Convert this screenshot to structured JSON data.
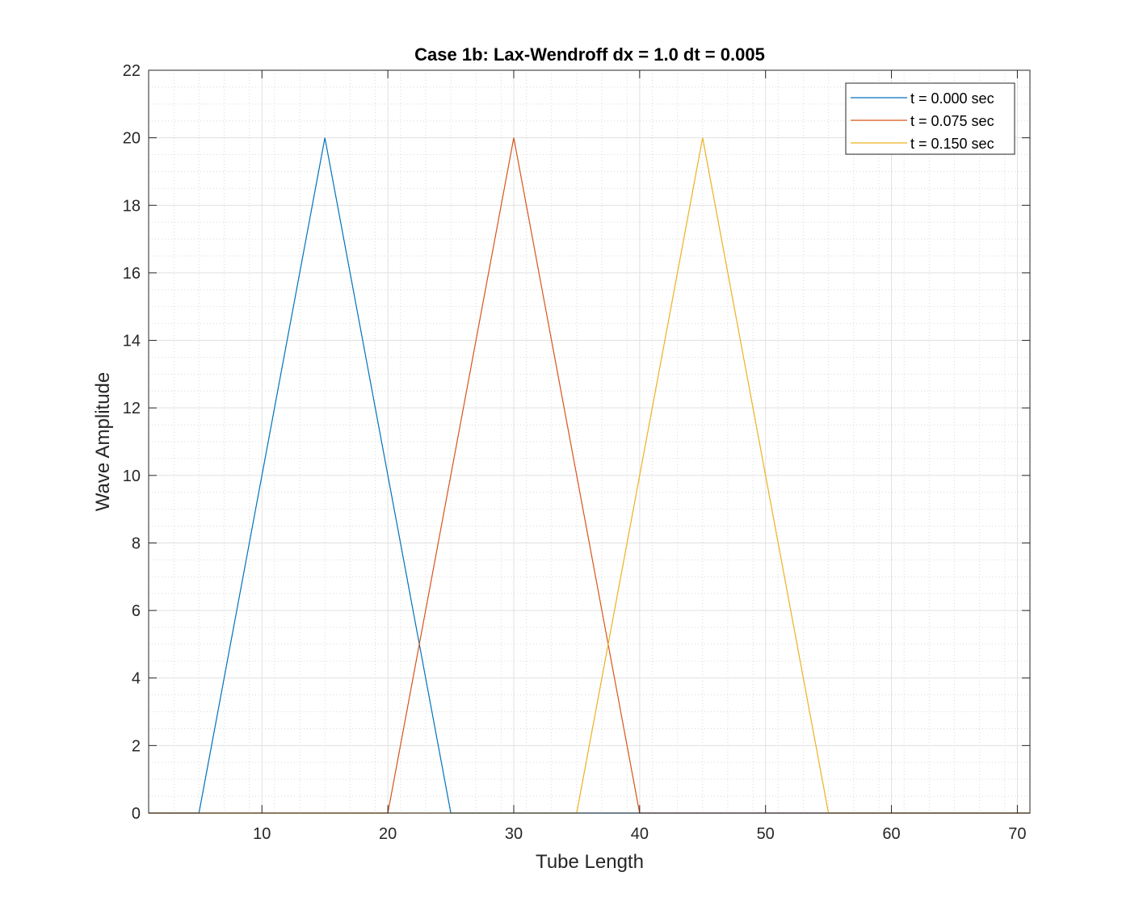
{
  "chart_data": {
    "type": "line",
    "title": "Case 1b: Lax-Wendroff dx = 1.0 dt = 0.005",
    "xlabel": "Tube Length",
    "ylabel": "Wave Amplitude",
    "xlim": [
      1,
      71
    ],
    "ylim": [
      0,
      22
    ],
    "xticks": [
      10,
      20,
      30,
      40,
      50,
      60,
      70
    ],
    "yticks": [
      0,
      2,
      4,
      6,
      8,
      10,
      12,
      14,
      16,
      18,
      20,
      22
    ],
    "grid": true,
    "minor_grid": true,
    "legend_position": "top-right",
    "series": [
      {
        "name": "t = 0.000 sec",
        "color": "#0072BD",
        "x": [
          1,
          5,
          15,
          25,
          71
        ],
        "y": [
          0,
          0,
          20,
          0,
          0
        ]
      },
      {
        "name": "t = 0.075 sec",
        "color": "#D95319",
        "x": [
          1,
          20,
          30,
          40,
          71
        ],
        "y": [
          0,
          0,
          20,
          0,
          0
        ]
      },
      {
        "name": "t = 0.150 sec",
        "color": "#EDB120",
        "x": [
          1,
          35,
          45,
          55,
          71
        ],
        "y": [
          0,
          0,
          20,
          0,
          0
        ]
      }
    ]
  }
}
